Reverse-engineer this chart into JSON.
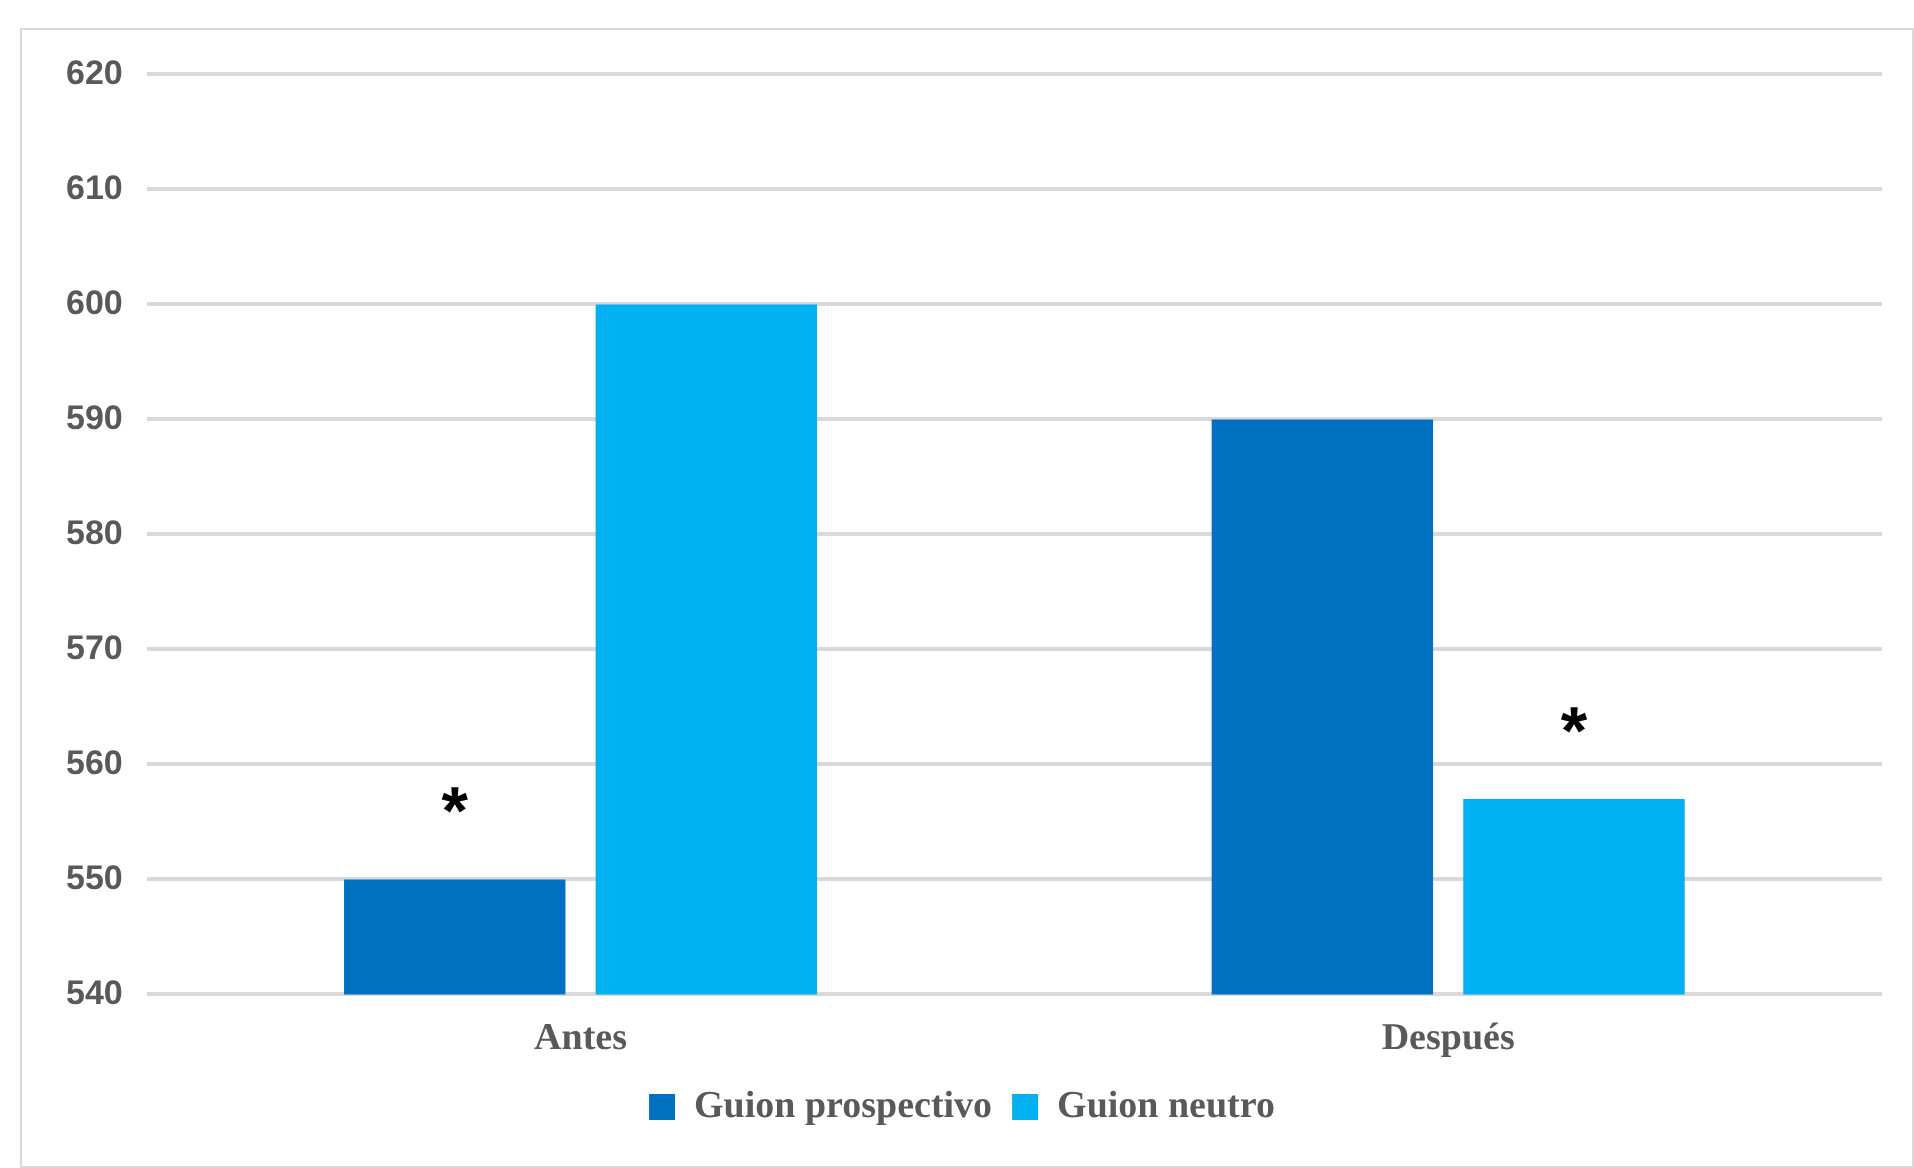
{
  "chart_data": {
    "type": "bar",
    "categories": [
      "Antes",
      "Después"
    ],
    "series": [
      {
        "name": "Guion prospectivo",
        "color": "#0070c0",
        "values": [
          550,
          590
        ]
      },
      {
        "name": "Guion neutro",
        "color": "#00b0f0",
        "values": [
          600,
          557
        ]
      }
    ],
    "ylim": [
      540,
      620
    ],
    "yticks": [
      540,
      550,
      560,
      570,
      580,
      590,
      600,
      610,
      620
    ],
    "grid": "y",
    "legend": "bottom",
    "annotations": [
      "*",
      "*"
    ]
  }
}
